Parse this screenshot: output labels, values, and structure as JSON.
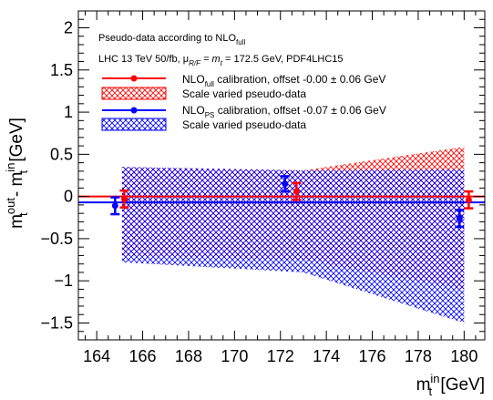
{
  "chart_data": {
    "type": "scatter",
    "title": "",
    "xlabel": "m_t^in [GeV]",
    "ylabel": "m_t^out - m_t^in [GeV]",
    "xlim": [
      163.2,
      180.9
    ],
    "ylim": [
      -1.7,
      2.2
    ],
    "xticks": [
      164,
      166,
      168,
      170,
      172,
      174,
      176,
      178,
      180
    ],
    "yticks": [
      -1.5,
      -1,
      -0.5,
      0,
      0.5,
      1,
      1.5,
      2
    ],
    "xtick_labels": [
      "164",
      "166",
      "168",
      "170",
      "172",
      "174",
      "176",
      "178",
      "180"
    ],
    "ytick_labels": [
      "−1.5",
      "−1",
      "−0.5",
      "0",
      "0.5",
      "1",
      "1.5",
      "2"
    ],
    "grid": false,
    "legend_position": "top-left",
    "legend_header": {
      "line1_main": "Pseudo-data according to NLO",
      "line1_sub": "full",
      "line2_a": "LHC 13 TeV 50/fb, μ",
      "line2_sub": "R/F",
      "line2_b": " = m",
      "line2_sub2": "t",
      "line2_c": " = 172.5 GeV, PDF4LHC15"
    },
    "x_axis_title": {
      "main": "m",
      "sup": "in",
      "sub": "t",
      "unit": " [GeV]"
    },
    "y_axis_title": {
      "main1": "m",
      "sup1": "out",
      "sub1": "t",
      "mid": " - m",
      "sup2": "in",
      "sub2": "t",
      "unit": " [GeV]"
    },
    "series": [
      {
        "name": "NLO_full calibration, offset -0.00 ± 0.06 GeV",
        "label_pre": "NLO",
        "label_sub": "full",
        "label_post": " calibration, offset -0.00 ± 0.06 GeV",
        "color": "#ff0000",
        "offset": -0.0,
        "x": [
          165.2,
          172.7,
          180.2
        ],
        "y": [
          -0.03,
          0.06,
          -0.04
        ],
        "yerr": [
          0.1,
          0.1,
          0.1
        ]
      },
      {
        "name": "NLO_PS calibration, offset -0.07 ± 0.06 GeV",
        "label_pre": "NLO",
        "label_sub": "PS",
        "label_post": " calibration, offset -0.07 ± 0.06 GeV",
        "color": "#0000ff",
        "offset": -0.07,
        "x": [
          164.8,
          172.2,
          179.8
        ],
        "y": [
          -0.11,
          0.15,
          -0.26
        ],
        "yerr": [
          0.1,
          0.09,
          0.1
        ]
      }
    ],
    "bands": [
      {
        "name": "Scale varied pseudo-data",
        "color": "#ff0000",
        "x": [
          165.1,
          173.0,
          180.0
        ],
        "upper": [
          0.35,
          0.31,
          0.59
        ],
        "lower": [
          -0.7,
          -0.75,
          -1.1
        ]
      },
      {
        "name": "Scale varied pseudo-data",
        "color": "#0000ff",
        "x": [
          165.1,
          173.0,
          180.0
        ],
        "upper": [
          0.35,
          0.31,
          0.32
        ],
        "lower": [
          -0.78,
          -0.9,
          -1.5
        ]
      }
    ]
  }
}
